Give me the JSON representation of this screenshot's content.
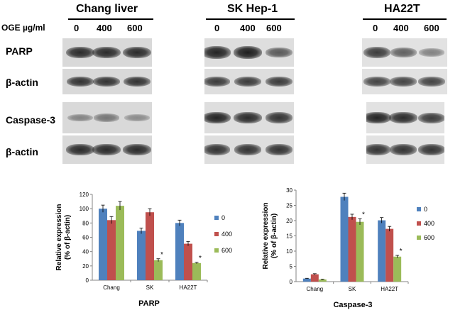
{
  "blot_header": {
    "dose_label": "OGE µg/ml",
    "cell_lines": [
      {
        "name": "Chang liver",
        "doses": [
          "0",
          "400",
          "600"
        ]
      },
      {
        "name": "SK Hep-1",
        "doses": [
          "0",
          "400",
          "600"
        ]
      },
      {
        "name": "HA22T",
        "doses": [
          "0",
          "400",
          "600"
        ]
      }
    ]
  },
  "blot_rows": [
    {
      "label": "PARP",
      "band_strength": {
        "chang": [
          0.85,
          0.85,
          0.85
        ],
        "sk": [
          0.9,
          0.95,
          0.55
        ],
        "ha22t": [
          0.75,
          0.5,
          0.3
        ]
      }
    },
    {
      "label": "β-actin",
      "band_strength": {
        "chang": [
          0.8,
          0.8,
          0.8
        ],
        "sk": [
          0.75,
          0.75,
          0.75
        ],
        "ha22t": [
          0.7,
          0.7,
          0.7
        ]
      }
    },
    {
      "label": "Caspase-3",
      "band_strength": {
        "chang": [
          0.25,
          0.35,
          0.2
        ],
        "sk": [
          0.9,
          0.85,
          0.8
        ],
        "ha22t": [
          0.9,
          0.85,
          0.75
        ]
      }
    },
    {
      "label": "β-actin",
      "band_strength": {
        "chang": [
          0.85,
          0.85,
          0.85
        ],
        "sk": [
          0.8,
          0.8,
          0.8
        ],
        "ha22t": [
          0.8,
          0.8,
          0.8
        ]
      }
    }
  ],
  "chart_data": [
    {
      "type": "bar",
      "title": "PARP",
      "ylabel": "Relative expression\n(% of β-actin)",
      "xlabel": "",
      "categories": [
        "Chang",
        "SK",
        "HA22T"
      ],
      "ylim": [
        0,
        120
      ],
      "yticks": [
        0,
        20,
        40,
        60,
        80,
        100,
        120
      ],
      "legend": "right",
      "series": [
        {
          "name": "0",
          "color": "#4f81bd",
          "values": [
            100,
            69,
            80
          ],
          "errors": [
            5,
            4,
            4
          ]
        },
        {
          "name": "400",
          "color": "#c0504d",
          "values": [
            84,
            95,
            51
          ],
          "errors": [
            5,
            5,
            3
          ]
        },
        {
          "name": "600",
          "color": "#9bbb59",
          "values": [
            104,
            28,
            24
          ],
          "errors": [
            6,
            2,
            1
          ]
        }
      ],
      "annotations": [
        {
          "series": "600",
          "category": "SK",
          "text": "*"
        },
        {
          "series": "600",
          "category": "HA22T",
          "text": "*"
        }
      ]
    },
    {
      "type": "bar",
      "title": "Caspase-3",
      "ylabel": "Relative expression\n(% of β-actin)",
      "xlabel": "",
      "categories": [
        "Chang",
        "SK",
        "HA22T"
      ],
      "ylim": [
        0,
        30
      ],
      "yticks": [
        0,
        5,
        10,
        15,
        20,
        25,
        30
      ],
      "legend": "right",
      "series": [
        {
          "name": "0",
          "color": "#4f81bd",
          "values": [
            1.0,
            27.8,
            20.1
          ],
          "errors": [
            0.1,
            1.2,
            0.9
          ]
        },
        {
          "name": "400",
          "color": "#c0504d",
          "values": [
            2.4,
            21.2,
            17.3
          ],
          "errors": [
            0.2,
            0.9,
            0.8
          ]
        },
        {
          "name": "600",
          "color": "#9bbb59",
          "values": [
            0.7,
            19.6,
            8.2
          ],
          "errors": [
            0.1,
            1.0,
            0.4
          ]
        }
      ],
      "annotations": [
        {
          "series": "600",
          "category": "SK",
          "text": "*"
        },
        {
          "series": "600",
          "category": "HA22T",
          "text": "*"
        }
      ]
    }
  ]
}
